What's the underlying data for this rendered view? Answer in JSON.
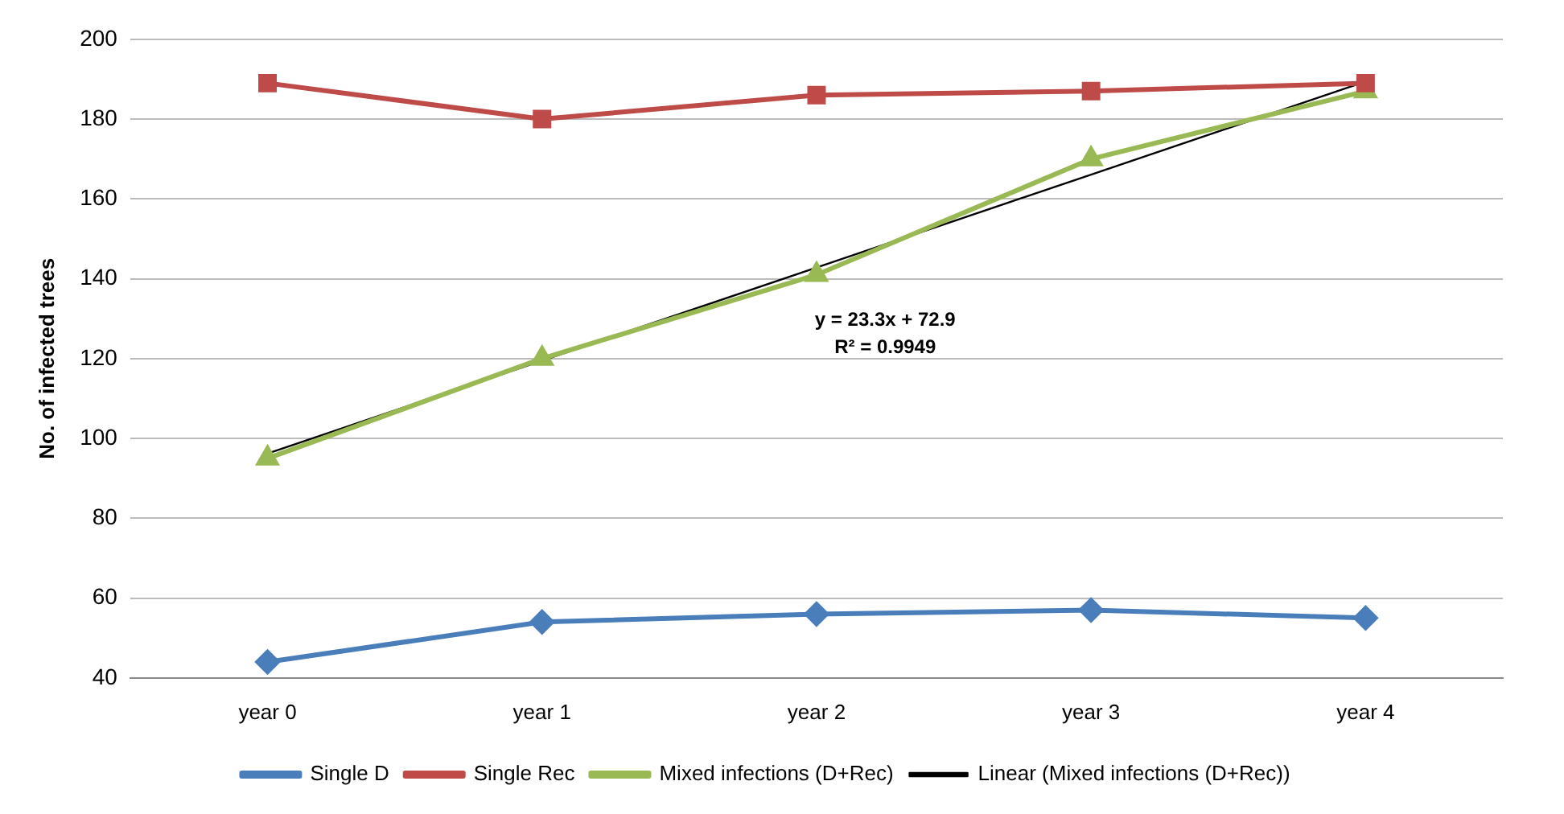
{
  "chart_data": {
    "type": "line",
    "ylabel": "No. of infected trees",
    "categories": [
      "year 0",
      "year 1",
      "year 2",
      "year 3",
      "year 4"
    ],
    "series": [
      {
        "name": "Single D",
        "color": "#4a7ebb",
        "marker": "diamond",
        "values": [
          44,
          54,
          56,
          57,
          55
        ]
      },
      {
        "name": "Single Rec",
        "color": "#be4b48",
        "marker": "square",
        "values": [
          189,
          180,
          186,
          187,
          189
        ]
      },
      {
        "name": "Mixed infections (D+Rec)",
        "color": "#98b954",
        "marker": "triangle",
        "values": [
          95,
          120,
          141,
          170,
          187
        ]
      },
      {
        "name": "Linear (Mixed infections (D+Rec))",
        "color": "#000000",
        "marker": "none",
        "values": [
          96.2,
          119.5,
          142.8,
          166.1,
          189.4
        ]
      }
    ],
    "ylim": [
      40,
      200
    ],
    "yticks": [
      40,
      60,
      80,
      100,
      120,
      140,
      160,
      180,
      200
    ],
    "grid": "y",
    "legend": "bottom",
    "annotations": [
      "y = 23.3x + 72.9",
      "R² = 0.9949"
    ]
  }
}
